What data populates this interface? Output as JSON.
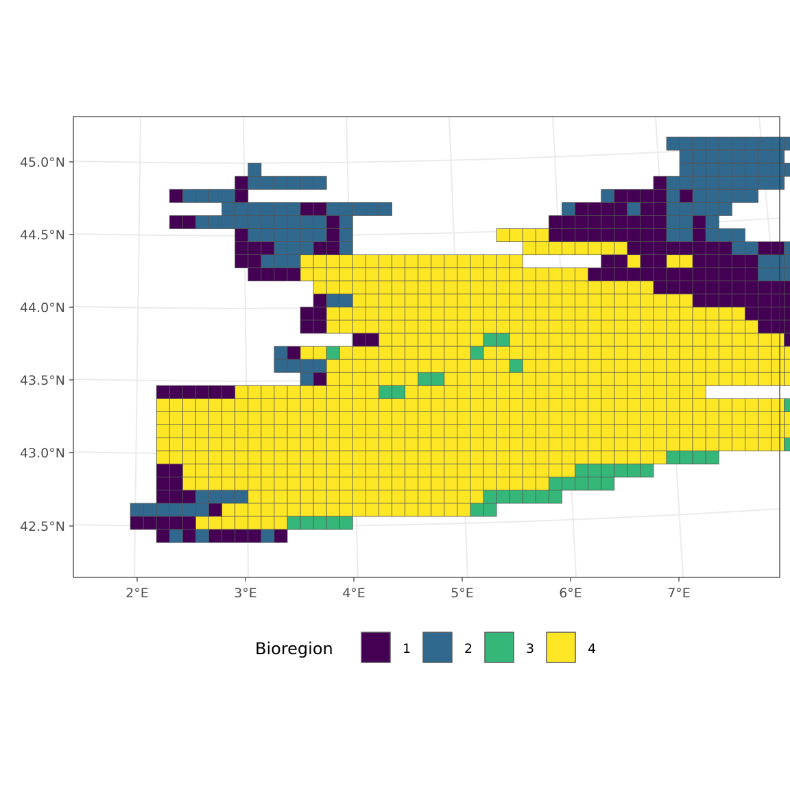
{
  "legend": {
    "title": "Bioregion",
    "items": [
      {
        "label": "1",
        "color": "#440154"
      },
      {
        "label": "2",
        "color": "#31688E"
      },
      {
        "label": "3",
        "color": "#35B779"
      },
      {
        "label": "4",
        "color": "#FDE725"
      }
    ]
  },
  "axes": {
    "x_ticks": [
      "2°E",
      "3°E",
      "4°E",
      "5°E",
      "6°E",
      "7°E"
    ],
    "y_ticks": [
      "45.0°N",
      "44.5°N",
      "44.0°N",
      "43.5°N",
      "43.0°N",
      "42.5°N"
    ]
  },
  "map": {
    "type": "gridded bioregion map",
    "lon_range": [
      1.4,
      7.9
    ],
    "lat_range": [
      42.2,
      45.3
    ],
    "colors": {
      "1": "#440154",
      "2": "#31688E",
      "3": "#35B779",
      "4": "#FDE725"
    },
    "cell_rows": [
      {
        "lat_index": 0,
        "cells": "43:2222222222"
      },
      {
        "lat_index": 1,
        "cells": "44:22222222"
      },
      {
        "lat_index": 2,
        "cells": "11:2|44:222222222"
      },
      {
        "lat_index": 3,
        "cells": "10:1222222|42:1222222222"
      },
      {
        "lat_index": 4,
        "cells": "5:122221|38:211112122222"
      },
      {
        "lat_index": 5,
        "cells": "9:2222221122222|35:2111121122222"
      },
      {
        "lat_index": 6,
        "cells": "5:11222222222212|34:1111111112212"
      },
      {
        "lat_index": 7,
        "cells": "10:122222212|30:44444|34:111111111221222"
      },
      {
        "lat_index": 8,
        "cells": "10:111222112|32:44444444444|40:11111111221122222"
      },
      {
        "lat_index": 9,
        "cells": "10:1122244444444444444444|38:11411441111122222222222"
      },
      {
        "lat_index": 10,
        "cells": "11:1111444444444444444444444411111111111112222"
      },
      {
        "lat_index": 11,
        "cells": "16:4444444444444444444444444411111111111111111111"
      },
      {
        "lat_index": 12,
        "cells": "16:122444444444444444444444444441111111111111111111"
      },
      {
        "lat_index": 13,
        "cells": "15:11444444444444444444444444444444441111111444444"
      },
      {
        "lat_index": 14,
        "cells": "15:114444444444444444444444444444444441111144444433"
      },
      {
        "lat_index": 15,
        "cells": "19:1144444444334444444444444444444441111444433"
      },
      {
        "lat_index": 16,
        "cells": "13:21443444444444434444444444444444444444444333333"
      },
      {
        "lat_index": 17,
        "cells": "13:2222444444444444443444444444444444444444433"
      },
      {
        "lat_index": 18,
        "cells": "15:21444444433444444444444444444444444444433"
      },
      {
        "lat_index": 19,
        "cells": "4:111111444444444443344444444444444444444444"
      },
      {
        "lat_index": 20,
        "cells": "4:4444444444444444444444444444444444444444444444443333"
      },
      {
        "lat_index": 21,
        "cells": "4:4444444444444444444444444444444444444444444444444333"
      },
      {
        "lat_index": 22,
        "cells": "4:444444444444444444444444444444444444444444444444433"
      },
      {
        "lat_index": 23,
        "cells": "4:44444444444444444444444444444444444444444444444433"
      },
      {
        "lat_index": 24,
        "cells": "4:4444444444444444444444444444444444444443333"
      },
      {
        "lat_index": 25,
        "cells": "4:11444444444444444444444444444444333333"
      },
      {
        "lat_index": 26,
        "cells": "4:11444444444444444444444444444433333"
      },
      {
        "lat_index": 27,
        "cells": "4:1112222444444444444444444333333"
      },
      {
        "lat_index": 28,
        "cells": "2:2222221444444444444444444433"
      },
      {
        "lat_index": 29,
        "cells": "2:11111444444433333"
      },
      {
        "lat_index": 30,
        "cells": "4:1212111121"
      }
    ]
  }
}
